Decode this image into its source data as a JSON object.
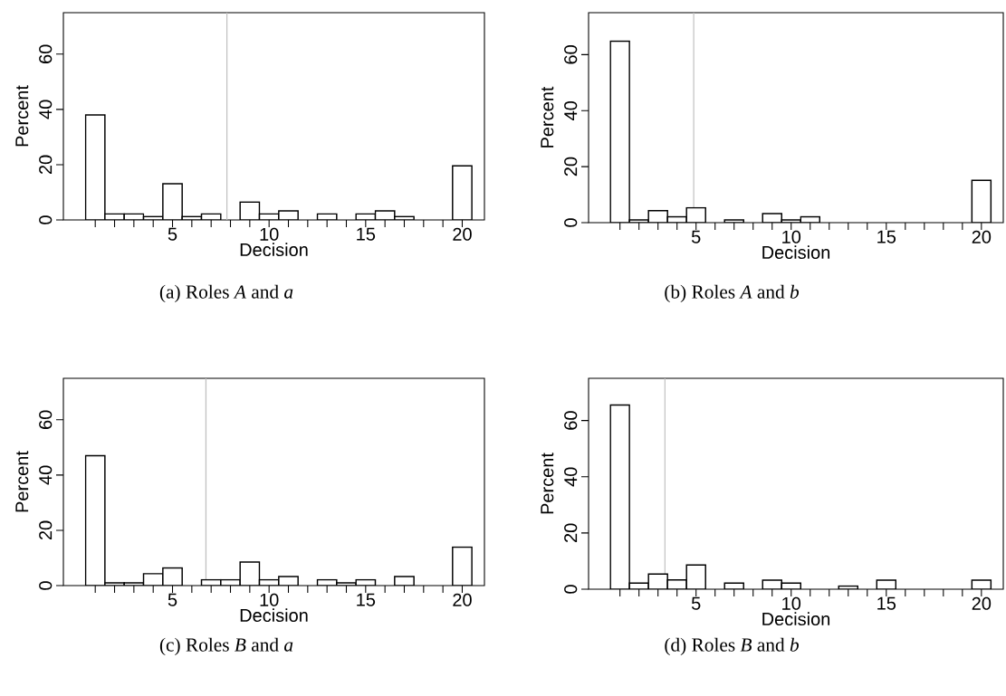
{
  "chart_data": [
    {
      "type": "histogram",
      "title": "(a) Roles *A* and *a*",
      "xlabel": "Decision",
      "ylabel": "Percent",
      "bins": [
        0.5,
        1.5,
        2.5,
        3.5,
        4.5,
        5.5,
        6.5,
        7.5,
        8.5,
        9.5,
        10.5,
        11.5,
        12.5,
        13.5,
        14.5,
        15.5,
        16.5,
        17.5,
        18.5,
        19.5,
        20.5
      ],
      "values": [
        38,
        2.2,
        2.2,
        1.2,
        13.1,
        1.2,
        2.2,
        0,
        6.5,
        2.2,
        3.3,
        0,
        2.2,
        0,
        2.2,
        3.3,
        1.2,
        0,
        0,
        19.6
      ],
      "color": "#ffffff",
      "xlim": [
        -0.65,
        21.15
      ],
      "ylim": [
        0,
        75
      ],
      "xticks": [
        {
          "value": 1,
          "label": null
        },
        {
          "value": 2,
          "label": null
        },
        {
          "value": 3,
          "label": null
        },
        {
          "value": 4,
          "label": null
        },
        5,
        {
          "value": 6,
          "label": null
        },
        {
          "value": 7,
          "label": null
        },
        {
          "value": 8,
          "label": null
        },
        {
          "value": 9,
          "label": null
        },
        10,
        {
          "value": 11,
          "label": null
        },
        {
          "value": 12,
          "label": null
        },
        {
          "value": 13,
          "label": null
        },
        {
          "value": 14,
          "label": null
        },
        15,
        {
          "value": 16,
          "label": null
        },
        {
          "value": 17,
          "label": null
        },
        {
          "value": 18,
          "label": null
        },
        {
          "value": 19,
          "label": null
        },
        20
      ],
      "yticks": [
        0,
        20,
        40,
        60
      ],
      "ref_lines": [
        {
          "axis": "x",
          "value": 7.82,
          "color": "#c0c0c0"
        }
      ]
    },
    {
      "type": "histogram",
      "title": "(b) Roles *A* and *b*",
      "xlabel": "Decision",
      "ylabel": "Percent",
      "bins": [
        0.5,
        1.5,
        2.5,
        3.5,
        4.5,
        5.5,
        6.5,
        7.5,
        8.5,
        9.5,
        10.5,
        11.5,
        12.5,
        13.5,
        14.5,
        15.5,
        16.5,
        17.5,
        18.5,
        19.5,
        20.5
      ],
      "values": [
        64.8,
        1,
        4.3,
        2.1,
        5.3,
        0,
        1,
        0,
        3.2,
        1,
        2.1,
        0,
        0,
        0,
        0,
        0,
        0,
        0,
        0,
        15.1
      ],
      "color": "#ffffff",
      "xlim": [
        -0.65,
        21.15
      ],
      "ylim": [
        0,
        75
      ],
      "xticks": [
        {
          "value": 1,
          "label": null
        },
        {
          "value": 2,
          "label": null
        },
        {
          "value": 3,
          "label": null
        },
        {
          "value": 4,
          "label": null
        },
        5,
        {
          "value": 6,
          "label": null
        },
        {
          "value": 7,
          "label": null
        },
        {
          "value": 8,
          "label": null
        },
        {
          "value": 9,
          "label": null
        },
        10,
        {
          "value": 11,
          "label": null
        },
        {
          "value": 12,
          "label": null
        },
        {
          "value": 13,
          "label": null
        },
        {
          "value": 14,
          "label": null
        },
        15,
        {
          "value": 16,
          "label": null
        },
        {
          "value": 17,
          "label": null
        },
        {
          "value": 18,
          "label": null
        },
        {
          "value": 19,
          "label": null
        },
        20
      ],
      "yticks": [
        0,
        20,
        40,
        60
      ],
      "ref_lines": [
        {
          "axis": "x",
          "value": 4.88,
          "color": "#c0c0c0"
        }
      ]
    },
    {
      "type": "histogram",
      "title": "(c) Roles *B* and *a*",
      "xlabel": "Decision",
      "ylabel": "Percent",
      "bins": [
        0.5,
        1.5,
        2.5,
        3.5,
        4.5,
        5.5,
        6.5,
        7.5,
        8.5,
        9.5,
        10.5,
        11.5,
        12.5,
        13.5,
        14.5,
        15.5,
        16.5,
        17.5,
        18.5,
        19.5,
        20.5
      ],
      "values": [
        47,
        1,
        1,
        4.3,
        6.4,
        0,
        2.1,
        2.1,
        8.5,
        2.1,
        3.3,
        0,
        2.1,
        1,
        2.1,
        0,
        3.3,
        0,
        0,
        13.9
      ],
      "color": "#ffffff",
      "xlim": [
        -0.65,
        21.15
      ],
      "ylim": [
        0,
        75
      ],
      "xticks": [
        {
          "value": 1,
          "label": null
        },
        {
          "value": 2,
          "label": null
        },
        {
          "value": 3,
          "label": null
        },
        {
          "value": 4,
          "label": null
        },
        5,
        {
          "value": 6,
          "label": null
        },
        {
          "value": 7,
          "label": null
        },
        {
          "value": 8,
          "label": null
        },
        {
          "value": 9,
          "label": null
        },
        10,
        {
          "value": 11,
          "label": null
        },
        {
          "value": 12,
          "label": null
        },
        {
          "value": 13,
          "label": null
        },
        {
          "value": 14,
          "label": null
        },
        15,
        {
          "value": 16,
          "label": null
        },
        {
          "value": 17,
          "label": null
        },
        {
          "value": 18,
          "label": null
        },
        {
          "value": 19,
          "label": null
        },
        20
      ],
      "yticks": [
        0,
        20,
        40,
        60
      ],
      "ref_lines": [
        {
          "axis": "x",
          "value": 6.73,
          "color": "#c0c0c0"
        }
      ]
    },
    {
      "type": "histogram",
      "title": "(d) Roles *B* and *b*",
      "xlabel": "Decision",
      "ylabel": "Percent",
      "bins": [
        0.5,
        1.5,
        2.5,
        3.5,
        4.5,
        5.5,
        6.5,
        7.5,
        8.5,
        9.5,
        10.5,
        11.5,
        12.5,
        13.5,
        14.5,
        15.5,
        16.5,
        17.5,
        18.5,
        19.5,
        20.5
      ],
      "values": [
        65.5,
        2.2,
        5.4,
        3.3,
        8.6,
        0,
        2.2,
        0,
        3.2,
        2.2,
        0,
        0,
        1.1,
        0,
        3.2,
        0,
        0,
        0,
        0,
        3.2
      ],
      "color": "#ffffff",
      "xlim": [
        -0.65,
        21.15
      ],
      "ylim": [
        0,
        75
      ],
      "xticks": [
        {
          "value": 1,
          "label": null
        },
        {
          "value": 2,
          "label": null
        },
        {
          "value": 3,
          "label": null
        },
        {
          "value": 4,
          "label": null
        },
        5,
        {
          "value": 6,
          "label": null
        },
        {
          "value": 7,
          "label": null
        },
        {
          "value": 8,
          "label": null
        },
        {
          "value": 9,
          "label": null
        },
        10,
        {
          "value": 11,
          "label": null
        },
        {
          "value": 12,
          "label": null
        },
        {
          "value": 13,
          "label": null
        },
        {
          "value": 14,
          "label": null
        },
        15,
        {
          "value": 16,
          "label": null
        },
        {
          "value": 17,
          "label": null
        },
        {
          "value": 18,
          "label": null
        },
        {
          "value": 19,
          "label": null
        },
        20
      ],
      "yticks": [
        0,
        20,
        40,
        60
      ],
      "ref_lines": [
        {
          "axis": "x",
          "value": 3.36,
          "color": "#c0c0c0"
        }
      ]
    }
  ]
}
